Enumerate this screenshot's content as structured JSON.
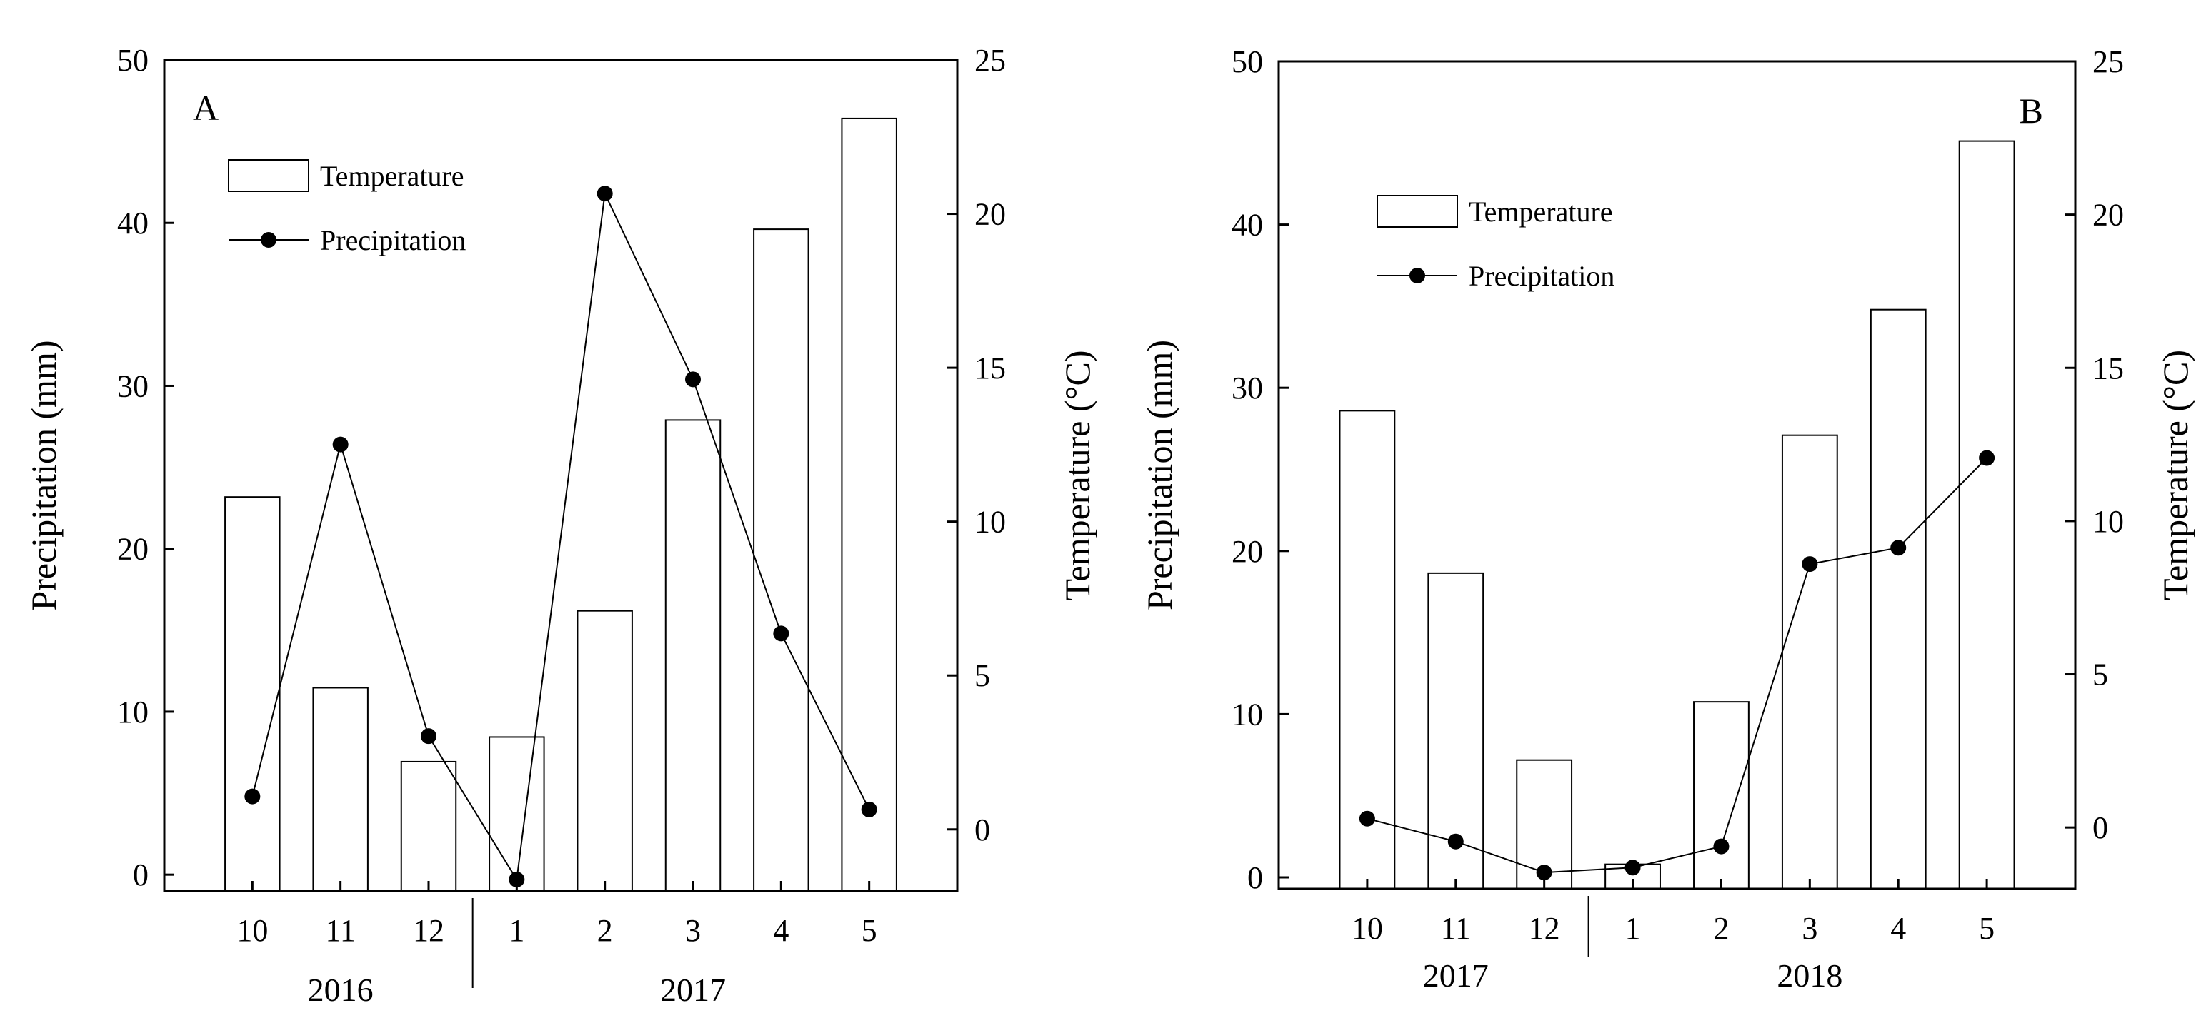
{
  "chart_data": [
    {
      "type": "bar+line",
      "panel_label": "A",
      "categories": [
        "10",
        "11",
        "12",
        "1",
        "2",
        "3",
        "4",
        "5"
      ],
      "year_groups": [
        {
          "label": "2016",
          "span": [
            0,
            2
          ]
        },
        {
          "label": "2017",
          "span": [
            3,
            7
          ]
        }
      ],
      "series": [
        {
          "name": "Temperature",
          "kind": "bar",
          "axis": "right",
          "unit": "°C",
          "values": [
            10.8,
            4.6,
            2.2,
            3.0,
            7.1,
            13.3,
            19.5,
            23.1
          ]
        },
        {
          "name": "Precipitation",
          "kind": "line",
          "axis": "left",
          "unit": "mm",
          "values": [
            4.8,
            26.4,
            8.5,
            -0.3,
            41.8,
            30.4,
            14.8,
            4.0
          ]
        }
      ],
      "left_axis": {
        "label": "Precipitation (mm)",
        "ylim": [
          -1,
          50
        ],
        "ticks": [
          0,
          10,
          20,
          30,
          40,
          50
        ]
      },
      "right_axis": {
        "label": "Temperature (°C)",
        "ylim": [
          -2,
          25
        ],
        "ticks": [
          0,
          5,
          10,
          15,
          20,
          25
        ]
      },
      "legend": {
        "position": "top-left",
        "entries": [
          "Temperature",
          "Precipitation"
        ]
      }
    },
    {
      "type": "bar+line",
      "panel_label": "B",
      "categories": [
        "10",
        "11",
        "12",
        "1",
        "2",
        "3",
        "4",
        "5"
      ],
      "year_groups": [
        {
          "label": "2017",
          "span": [
            0,
            2
          ]
        },
        {
          "label": "2018",
          "span": [
            3,
            7
          ]
        }
      ],
      "series": [
        {
          "name": "Temperature",
          "kind": "bar",
          "axis": "right",
          "unit": "°C",
          "values": [
            13.6,
            8.3,
            2.2,
            -1.2,
            4.1,
            12.8,
            16.9,
            22.4
          ]
        },
        {
          "name": "Precipitation",
          "kind": "line",
          "axis": "left",
          "unit": "mm",
          "values": [
            3.6,
            2.2,
            0.3,
            0.6,
            1.9,
            19.2,
            20.2,
            25.7
          ]
        }
      ],
      "left_axis": {
        "label": "Precipitation (mm)",
        "ylim": [
          -0.7,
          50
        ],
        "ticks": [
          0,
          10,
          20,
          30,
          40,
          50
        ]
      },
      "right_axis": {
        "label": "Temperature (°C)",
        "ylim": [
          -2,
          25
        ],
        "ticks": [
          0,
          5,
          10,
          15,
          20,
          25
        ]
      },
      "legend": {
        "position": "top-left",
        "entries": [
          "Temperature",
          "Precipitation"
        ]
      }
    }
  ]
}
